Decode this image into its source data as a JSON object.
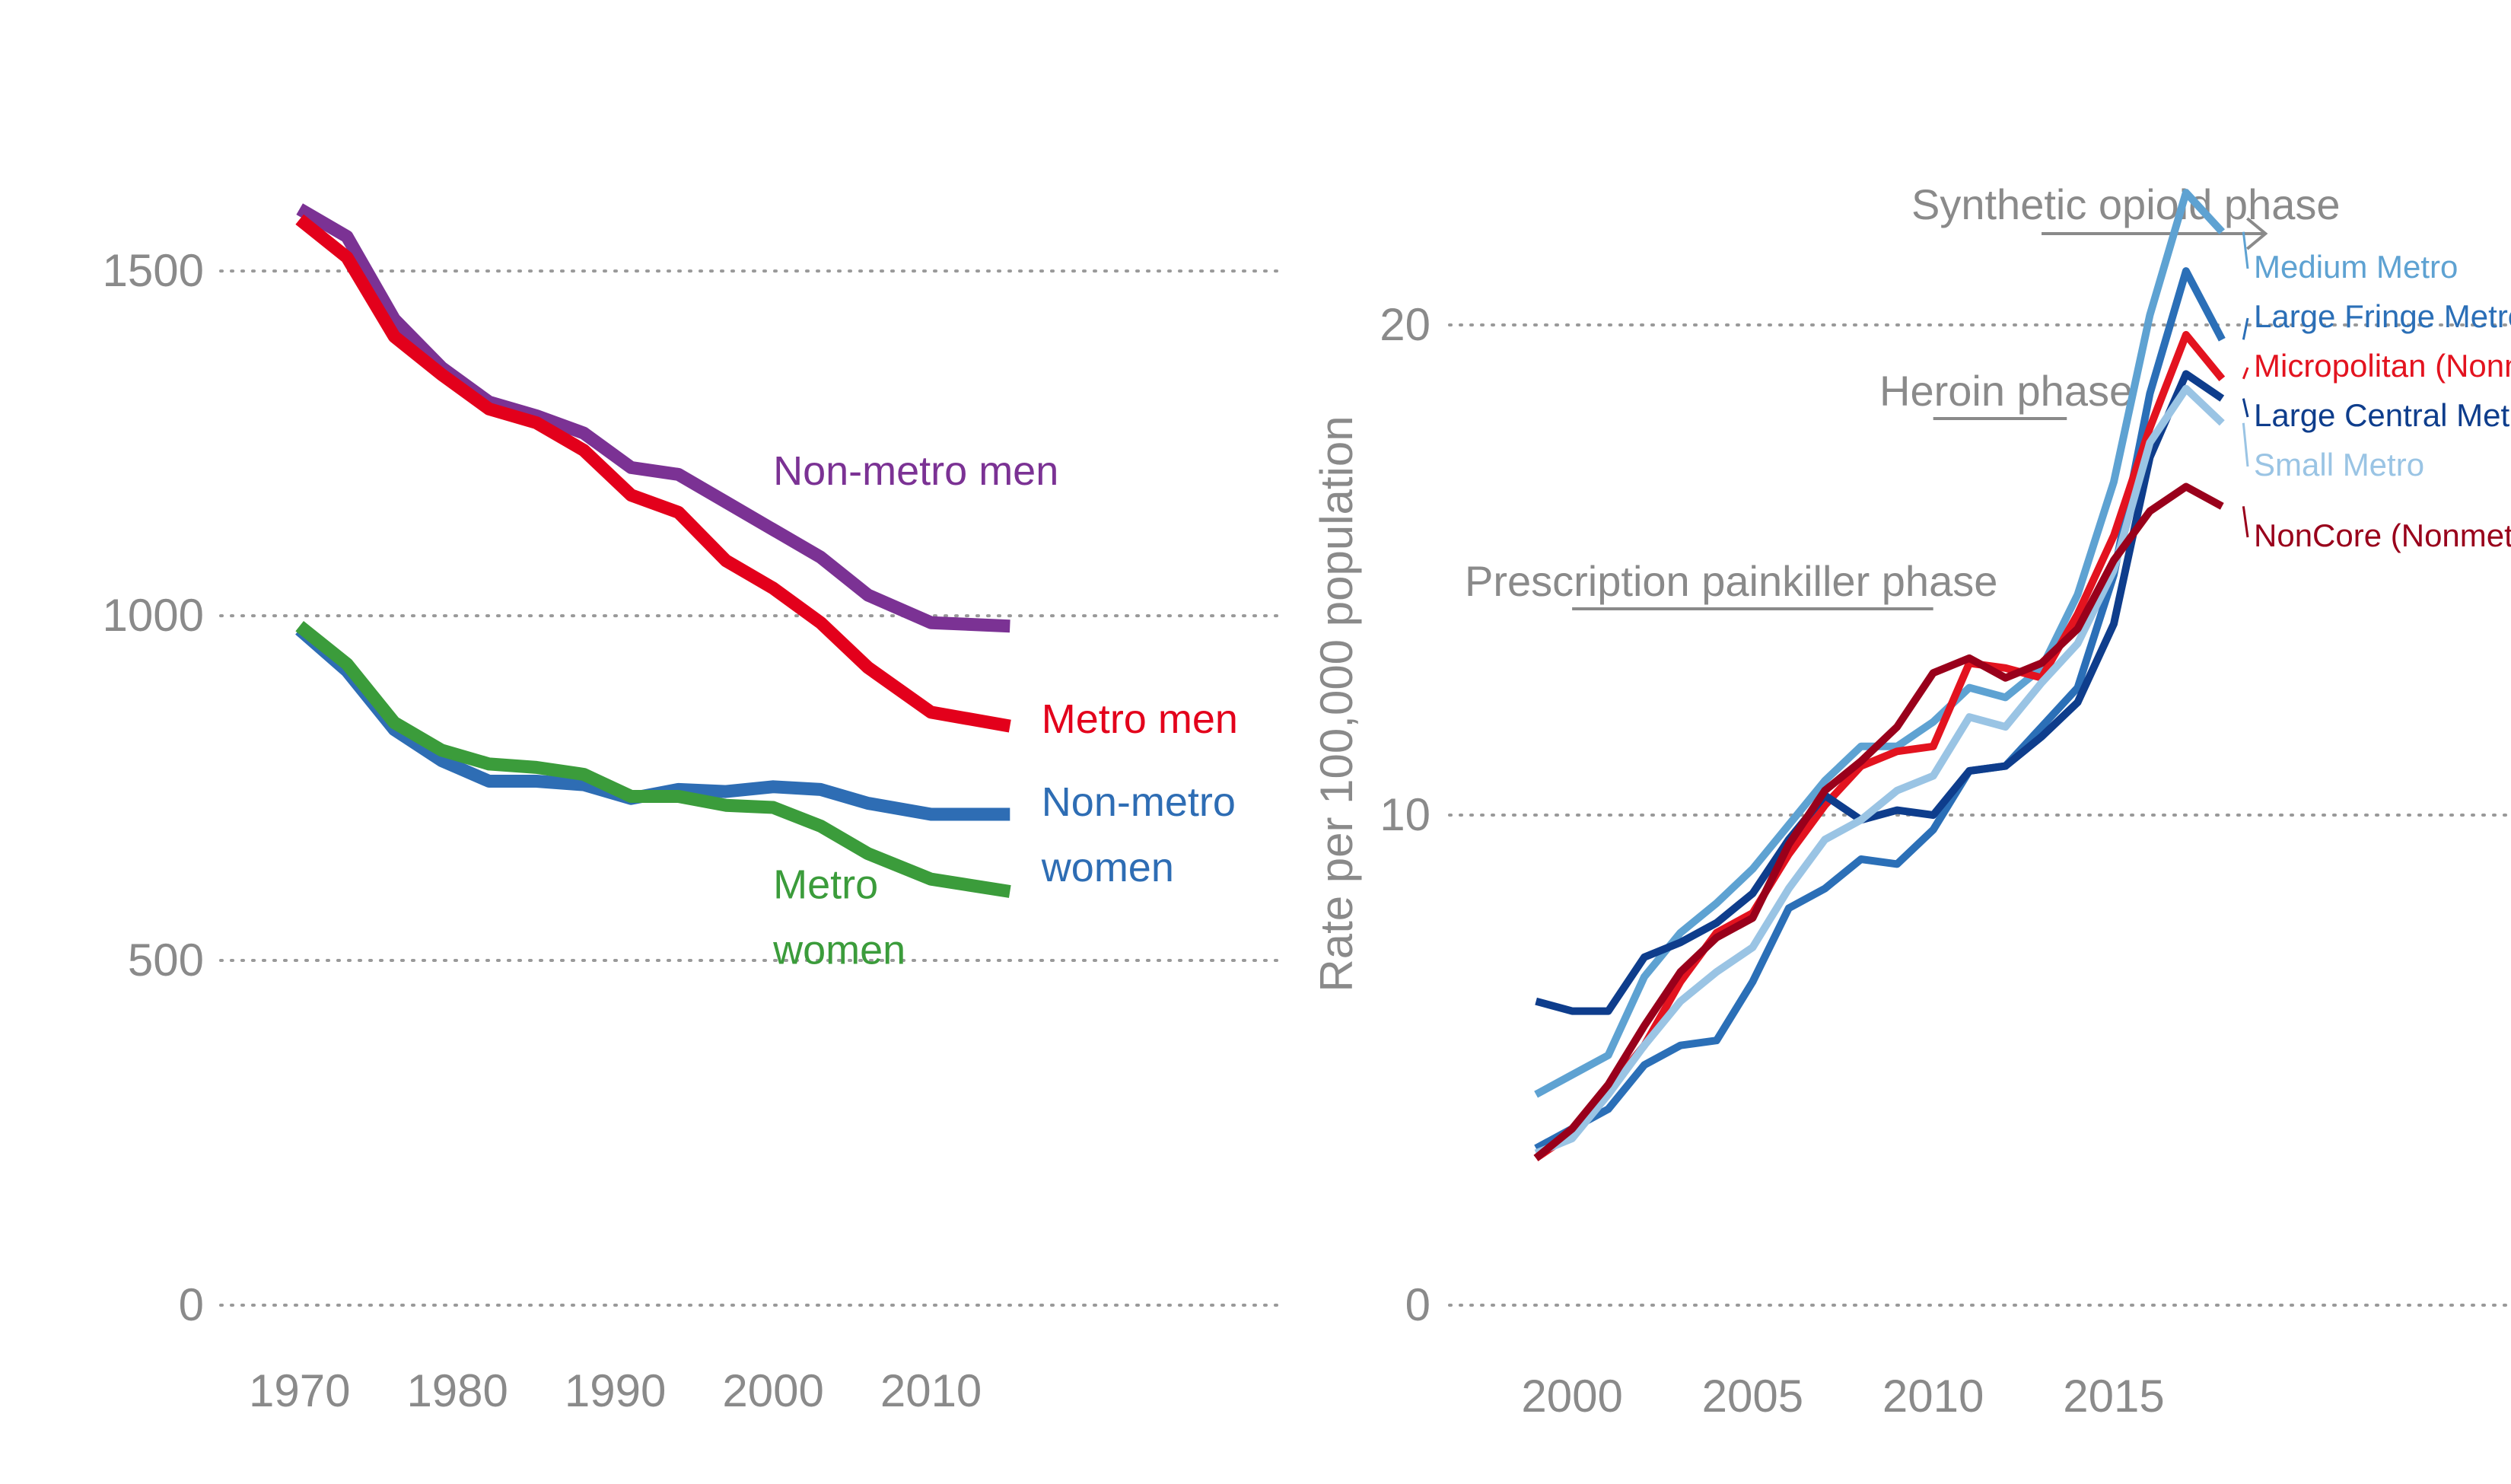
{
  "chart_data": [
    {
      "type": "line",
      "title": "",
      "xlabel": "",
      "ylabel": "",
      "xlim": [
        1965,
        2032
      ],
      "ylim": [
        0,
        1700
      ],
      "xticks": [
        1970,
        1980,
        1990,
        2000,
        2010
      ],
      "yticks": [
        0,
        500,
        1000,
        1500
      ],
      "grid": "horizontal dotted",
      "legend": "direct labels at line ends",
      "x": [
        1970,
        1973,
        1976,
        1979,
        1982,
        1985,
        1988,
        1991,
        1994,
        1997,
        2000,
        2003,
        2006,
        2010,
        2015
      ],
      "series": [
        {
          "name": "Non-metro men",
          "label_lines": [
            "Non-metro men"
          ],
          "color": "#7b3294",
          "values": [
            1590,
            1550,
            1430,
            1360,
            1310,
            1290,
            1265,
            1215,
            1205,
            1165,
            1125,
            1085,
            1030,
            990,
            985
          ]
        },
        {
          "name": "Metro men",
          "label_lines": [
            "Metro men"
          ],
          "color": "#e3001b",
          "values": [
            1575,
            1520,
            1405,
            1350,
            1300,
            1280,
            1240,
            1175,
            1150,
            1080,
            1040,
            990,
            925,
            860,
            840
          ]
        },
        {
          "name": "Non-metro women",
          "label_lines": [
            "Non-metro",
            "women"
          ],
          "color": "#2e6db4",
          "values": [
            980,
            920,
            835,
            790,
            760,
            760,
            755,
            735,
            748,
            745,
            752,
            748,
            728,
            712,
            712
          ]
        },
        {
          "name": "Metro women",
          "label_lines": [
            "Metro",
            "women"
          ],
          "color": "#3b9c3b",
          "values": [
            985,
            930,
            845,
            805,
            785,
            780,
            770,
            738,
            738,
            725,
            722,
            695,
            655,
            618,
            600
          ]
        }
      ]
    },
    {
      "type": "line",
      "title": "",
      "xlabel": "",
      "ylabel": "Rate per 100,000 population",
      "xlim": [
        1996.5,
        2026
      ],
      "ylim": [
        0,
        25
      ],
      "xticks": [
        2000,
        2005,
        2010,
        2015
      ],
      "yticks": [
        0,
        10,
        20
      ],
      "grid": "horizontal dotted",
      "legend": "direct labels at line ends",
      "x": [
        1999,
        2000,
        2001,
        2002,
        2003,
        2004,
        2005,
        2006,
        2007,
        2008,
        2009,
        2010,
        2011,
        2012,
        2013,
        2014,
        2015,
        2016,
        2017,
        2018
      ],
      "series": [
        {
          "name": "Medium Metro",
          "color": "#5ea2d2",
          "values": [
            4.3,
            4.7,
            5.1,
            6.7,
            7.6,
            8.2,
            8.9,
            9.8,
            10.7,
            11.4,
            11.4,
            11.9,
            12.6,
            12.4,
            13.0,
            14.5,
            16.8,
            20.2,
            22.7,
            21.9
          ]
        },
        {
          "name": "Large Fringe Metro",
          "color": "#2b6fb7",
          "values": [
            3.2,
            3.6,
            4.0,
            4.9,
            5.3,
            5.4,
            6.6,
            8.1,
            8.5,
            9.1,
            9.0,
            9.7,
            10.9,
            11.0,
            11.8,
            12.6,
            14.9,
            18.6,
            21.1,
            19.7
          ]
        },
        {
          "name": "Micropolitan (Nonmetro)",
          "color": "#e3131f",
          "values": [
            3.0,
            3.5,
            4.4,
            5.3,
            6.6,
            7.6,
            8.0,
            9.2,
            10.2,
            11.0,
            11.3,
            11.4,
            13.1,
            13.0,
            12.8,
            14.1,
            15.7,
            17.9,
            19.8,
            18.9
          ]
        },
        {
          "name": "Large Central Metro",
          "color": "#0e3d8c",
          "values": [
            6.2,
            6.0,
            6.0,
            7.1,
            7.4,
            7.8,
            8.4,
            9.5,
            10.4,
            9.9,
            10.1,
            10.0,
            10.9,
            11.0,
            11.6,
            12.3,
            13.9,
            17.3,
            19.0,
            18.5
          ]
        },
        {
          "name": "Small Metro",
          "color": "#9ac4e4",
          "values": [
            3.1,
            3.4,
            4.3,
            5.3,
            6.2,
            6.8,
            7.3,
            8.5,
            9.5,
            9.9,
            10.5,
            10.8,
            12.0,
            11.8,
            12.7,
            13.5,
            15.0,
            17.6,
            18.7,
            18.0
          ]
        },
        {
          "name": "NonCore (Nonmetro)",
          "color": "#99001b",
          "values": [
            3.0,
            3.6,
            4.5,
            5.7,
            6.8,
            7.5,
            7.9,
            9.4,
            10.5,
            11.1,
            11.8,
            12.9,
            13.2,
            12.8,
            13.1,
            13.8,
            15.2,
            16.2,
            16.7,
            16.3
          ]
        }
      ],
      "annotations": [
        {
          "text": "Prescription painkiller phase",
          "x_start": 2000,
          "x_end": 2010
        },
        {
          "text": "Heroin phase",
          "x_start": 2010,
          "x_end": 2013.7
        },
        {
          "text": "Synthetic opioid phase",
          "x_start": 2013,
          "x_end": 2019.2
        }
      ]
    }
  ]
}
